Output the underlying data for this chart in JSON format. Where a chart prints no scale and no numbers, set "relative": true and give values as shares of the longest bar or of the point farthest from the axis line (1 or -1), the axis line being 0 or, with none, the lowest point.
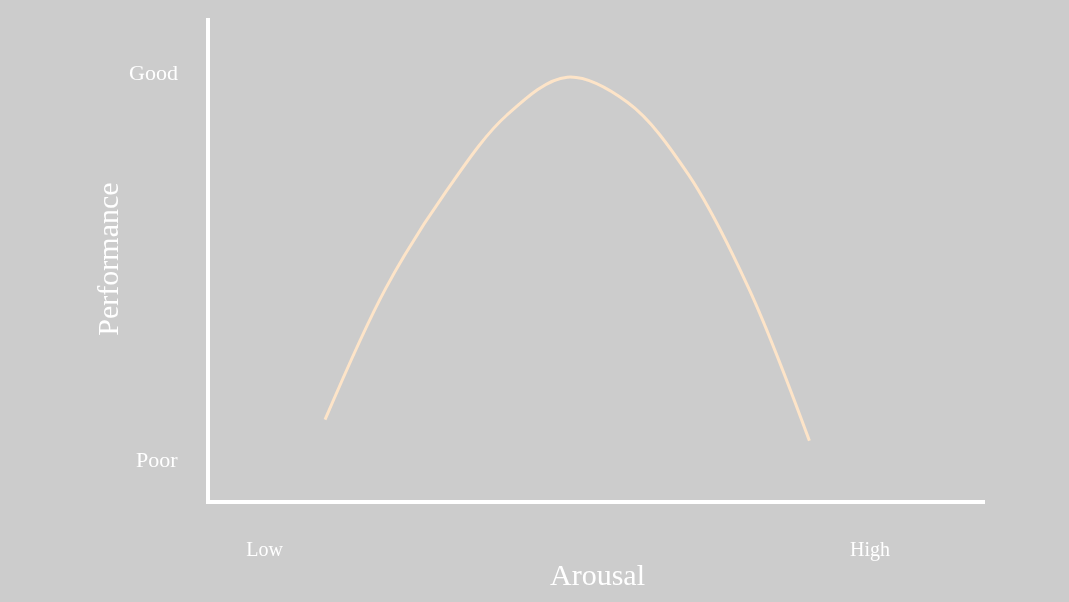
{
  "chart_data": {
    "type": "line",
    "relative": true,
    "xlabel": "Arousal",
    "ylabel": "Performance",
    "categories": [
      null,
      "Low",
      null,
      null,
      null,
      null,
      null,
      null,
      null,
      null,
      null,
      "High",
      null
    ],
    "values": [
      null,
      null,
      0.19,
      0.5,
      0.73,
      0.91,
      1,
      0.94,
      0.77,
      0.5,
      0.14,
      null,
      null
    ],
    "color": "#fde4c8",
    "annotations": [
      "Good",
      "Poor"
    ],
    "grid": false,
    "marker": "none",
    "line_style": "solid"
  }
}
